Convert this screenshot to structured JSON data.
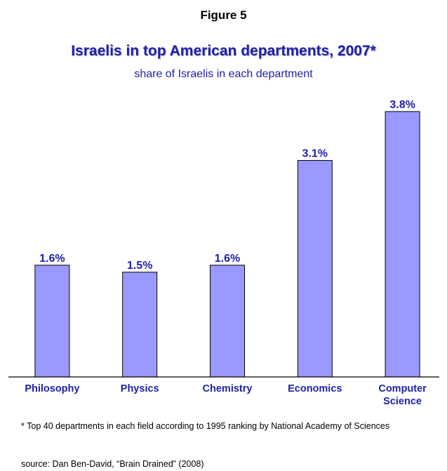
{
  "figure_label": "Figure 5",
  "chart_data": {
    "type": "bar",
    "title": "Israelis in top American departments, 2007*",
    "subtitle": "share of Israelis in each department",
    "categories": [
      [
        "Philosophy"
      ],
      [
        "Physics"
      ],
      [
        "Chemistry"
      ],
      [
        "Economics"
      ],
      [
        "Computer",
        "Science"
      ]
    ],
    "values": [
      1.6,
      1.5,
      1.6,
      3.1,
      3.8
    ],
    "value_labels": [
      "1.6%",
      "1.5%",
      "1.6%",
      "3.1%",
      "3.8%"
    ],
    "unit": "%",
    "ylim": [
      0,
      4.0
    ],
    "grid": false,
    "legend": "none",
    "bar_color": "#9999ff",
    "bar_outline_color": "#000000",
    "label_color": "#1f1fa8"
  },
  "footnote": "* Top 40 departments in each field according to 1995 ranking by National Academy of Sciences",
  "source": "source: Dan Ben-David, “Brain Drained” (2008)"
}
